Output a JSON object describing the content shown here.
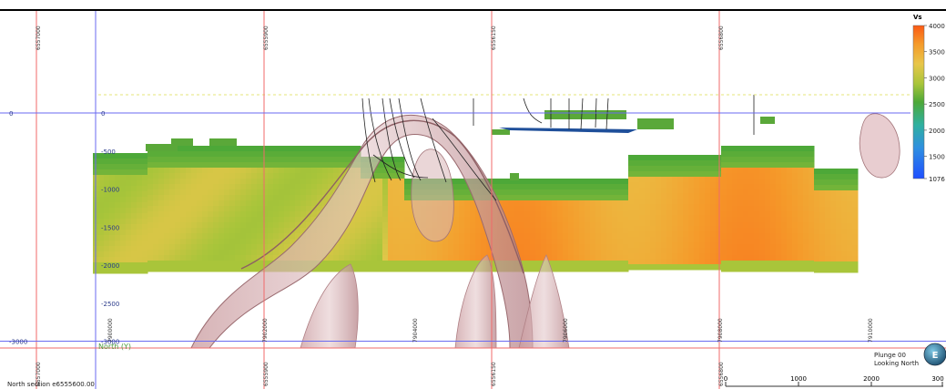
{
  "chart_data": {
    "type": "heatmap",
    "title": "",
    "colorbar": {
      "title": "Vs",
      "ticks": [
        4000,
        3500,
        3000,
        2500,
        2000,
        1500,
        1076
      ],
      "min": 1076,
      "max": 4000,
      "colors": [
        "#1f4fff",
        "#2f8fe0",
        "#2fb0a0",
        "#4da838",
        "#a9c53a",
        "#e8c64a",
        "#f59a2a",
        "#fb6a1a"
      ]
    },
    "depth_ticks": [
      0,
      -500,
      -1000,
      -1500,
      -2000,
      -2500,
      -3000
    ],
    "depth_left_labels": [
      "0",
      "-3000"
    ],
    "easting_ticks": [
      "7900000",
      "7902000",
      "7904000",
      "7906000",
      "7908000",
      "7910000"
    ],
    "northing_ticks": [
      "6557000",
      "6555900",
      "6556150",
      "6556800"
    ],
    "north_axis_label": "North (Y)",
    "section_label": "North section   e6555600.00",
    "plunge_label": "Plunge 00",
    "looking_label": "Looking North",
    "scale": {
      "labels": [
        "0",
        "1000",
        "2000",
        "300"
      ]
    },
    "grid": true
  },
  "compass": {
    "letter": "E",
    "icon": "compass-icon"
  }
}
